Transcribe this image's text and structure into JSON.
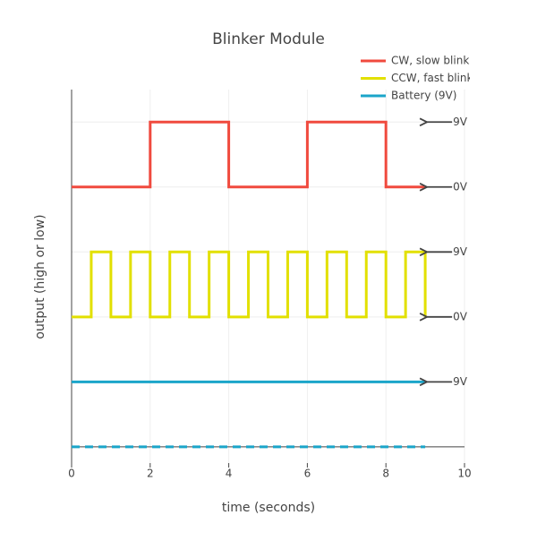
{
  "chart_data": {
    "type": "line",
    "title": "Blinker Module",
    "xlabel": "time (seconds)",
    "ylabel": "output (high or low)",
    "xlim": [
      0,
      10
    ],
    "xticks": [
      0,
      2,
      4,
      6,
      8,
      10
    ],
    "ylim": [
      -0.25,
      5.5
    ],
    "yticks": [
      0,
      1,
      2,
      3,
      4,
      5
    ],
    "grid": true,
    "legend": "top-right",
    "series": [
      {
        "name": "CW, slow blink",
        "color": "#f04a3e",
        "shape": "hv",
        "x": [
          0,
          2,
          4,
          6,
          8,
          9
        ],
        "values": [
          4,
          5,
          4,
          5,
          4,
          4
        ]
      },
      {
        "name": "CCW, fast blink",
        "color": "#e2e000",
        "shape": "hv",
        "x": [
          0,
          0.5,
          1,
          1.5,
          2,
          2.5,
          3,
          3.5,
          4,
          4.5,
          5,
          5.5,
          6,
          6.5,
          7,
          7.5,
          8,
          8.5,
          9
        ],
        "values": [
          2,
          3,
          2,
          3,
          2,
          3,
          2,
          3,
          2,
          3,
          2,
          3,
          2,
          3,
          2,
          3,
          2,
          3,
          2
        ]
      },
      {
        "name": "Battery (9V)",
        "color": "#1ba5c9",
        "shape": "linear",
        "x": [
          0,
          9
        ],
        "values": [
          1,
          1
        ]
      },
      {
        "color": "#1ba5c9",
        "shape": "linear",
        "dash": true,
        "showlegend": false,
        "x": [
          0,
          9
        ],
        "values": [
          0,
          0
        ]
      }
    ],
    "annotations": [
      {
        "text": "9V",
        "x": 9,
        "y": 5
      },
      {
        "text": "0V",
        "x": 9,
        "y": 4
      },
      {
        "text": "9V",
        "x": 9,
        "y": 3
      },
      {
        "text": "0V",
        "x": 9,
        "y": 2
      },
      {
        "text": "9V",
        "x": 9,
        "y": 1
      }
    ]
  }
}
